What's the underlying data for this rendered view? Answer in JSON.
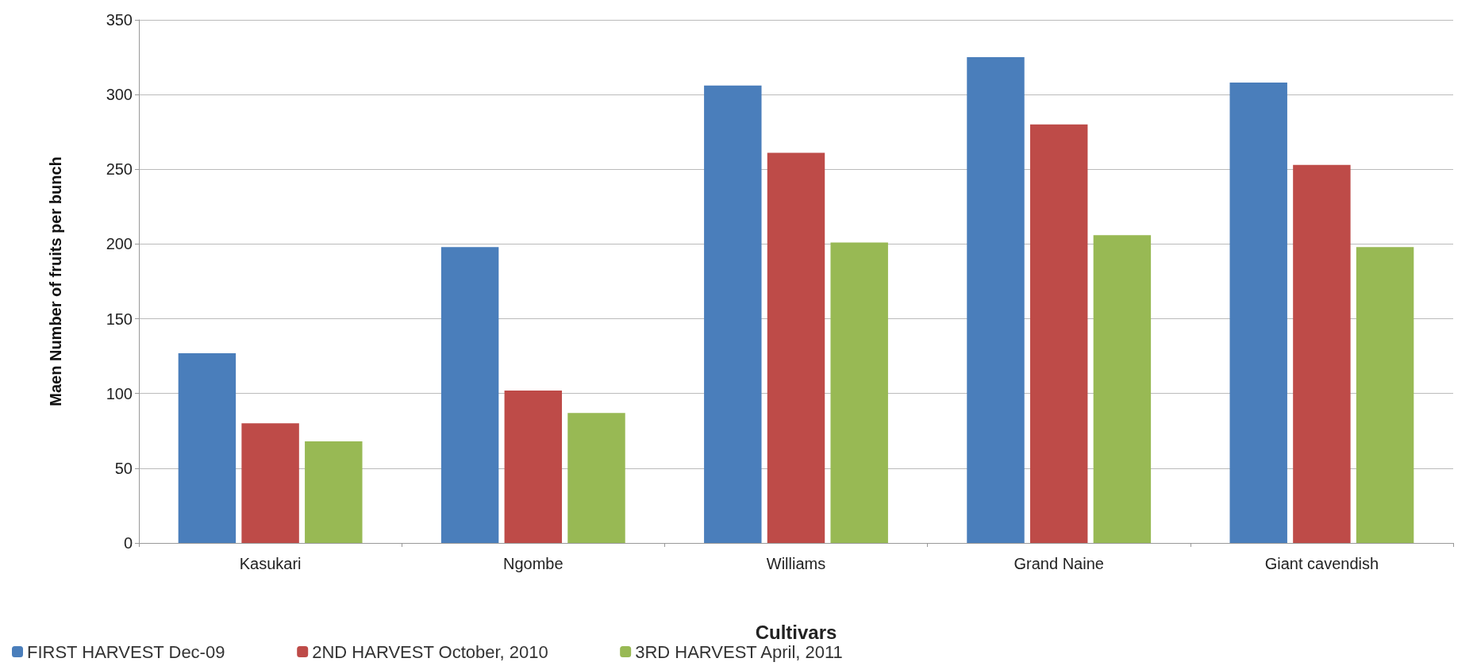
{
  "chart_data": {
    "type": "bar",
    "xlabel": "Cultivars",
    "ylabel": "Maen Number of fruits per bunch",
    "categories": [
      "Kasukari",
      "Ngombe",
      "Williams",
      "Grand Naine",
      "Giant cavendish"
    ],
    "series": [
      {
        "name": "FIRST HARVEST Dec-09",
        "color": "#4a7ebb",
        "values": [
          127,
          198,
          306,
          325,
          308
        ]
      },
      {
        "name": "2ND HARVEST October, 2010",
        "color": "#be4b48",
        "values": [
          80,
          102,
          261,
          280,
          253
        ]
      },
      {
        "name": "3RD HARVEST April, 2011",
        "color": "#98b954",
        "values": [
          68,
          87,
          201,
          206,
          198
        ]
      }
    ],
    "ylim": [
      0,
      350
    ],
    "yticks": [
      0,
      50,
      100,
      150,
      200,
      250,
      300,
      350
    ],
    "grid": "y",
    "legend": "bottom left"
  }
}
